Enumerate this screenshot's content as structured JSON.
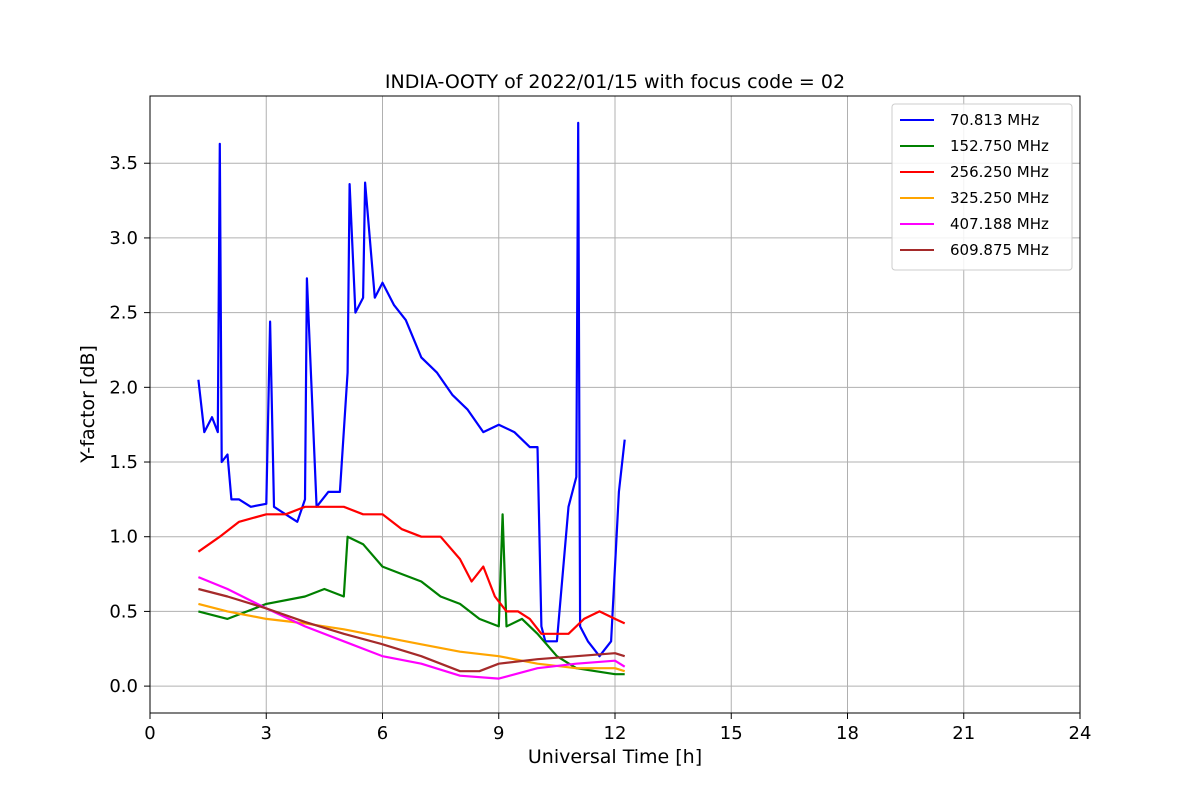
{
  "chart_data": {
    "type": "line",
    "title": "INDIA-OOTY of 2022/01/15 with focus code = 02",
    "xlabel": "Universal Time [h]",
    "ylabel": "Y-factor [dB]",
    "xlim": [
      0,
      24
    ],
    "ylim": [
      -0.18,
      3.95
    ],
    "xticks": [
      0,
      3,
      6,
      9,
      12,
      15,
      18,
      21,
      24
    ],
    "xtick_labels": [
      "0",
      "3",
      "6",
      "9",
      "12",
      "15",
      "18",
      "21",
      "24"
    ],
    "yticks": [
      0.0,
      0.5,
      1.0,
      1.5,
      2.0,
      2.5,
      3.0,
      3.5
    ],
    "ytick_labels": [
      "0.0",
      "0.5",
      "1.0",
      "1.5",
      "2.0",
      "2.5",
      "3.0",
      "3.5"
    ],
    "grid": true,
    "legend_position": "top-right",
    "series": [
      {
        "name": "70.813 MHz",
        "color": "#0000ff",
        "x": [
          1.25,
          1.4,
          1.6,
          1.75,
          1.8,
          1.85,
          2.0,
          2.1,
          2.3,
          2.6,
          3.0,
          3.1,
          3.2,
          3.5,
          3.8,
          4.0,
          4.05,
          4.3,
          4.6,
          4.9,
          5.1,
          5.15,
          5.3,
          5.5,
          5.55,
          5.8,
          6.0,
          6.3,
          6.6,
          7.0,
          7.4,
          7.8,
          8.2,
          8.6,
          9.0,
          9.4,
          9.8,
          10.0,
          10.1,
          10.2,
          10.5,
          10.8,
          11.0,
          11.05,
          11.1,
          11.3,
          11.6,
          11.9,
          12.1,
          12.25
        ],
        "y": [
          2.05,
          1.7,
          1.8,
          1.7,
          3.63,
          1.5,
          1.55,
          1.25,
          1.25,
          1.2,
          1.22,
          2.44,
          1.2,
          1.15,
          1.1,
          1.25,
          2.73,
          1.2,
          1.3,
          1.3,
          2.1,
          3.36,
          2.5,
          2.6,
          3.37,
          2.6,
          2.7,
          2.55,
          2.45,
          2.2,
          2.1,
          1.95,
          1.85,
          1.7,
          1.75,
          1.7,
          1.6,
          1.6,
          0.4,
          0.3,
          0.3,
          1.2,
          1.4,
          3.77,
          0.4,
          0.3,
          0.2,
          0.3,
          1.3,
          1.65
        ]
      },
      {
        "name": "152.750 MHz",
        "color": "#008000",
        "x": [
          1.25,
          2.0,
          3.0,
          4.0,
          4.5,
          5.0,
          5.1,
          5.5,
          6.0,
          6.5,
          7.0,
          7.5,
          8.0,
          8.5,
          9.0,
          9.1,
          9.2,
          9.6,
          10.0,
          10.5,
          11.0,
          11.5,
          12.0,
          12.25
        ],
        "y": [
          0.5,
          0.45,
          0.55,
          0.6,
          0.65,
          0.6,
          1.0,
          0.95,
          0.8,
          0.75,
          0.7,
          0.6,
          0.55,
          0.45,
          0.4,
          1.15,
          0.4,
          0.45,
          0.35,
          0.2,
          0.12,
          0.1,
          0.08,
          0.08
        ]
      },
      {
        "name": "256.250 MHz",
        "color": "#ff0000",
        "x": [
          1.25,
          1.8,
          2.3,
          3.0,
          3.5,
          4.0,
          4.5,
          5.0,
          5.5,
          6.0,
          6.5,
          7.0,
          7.5,
          8.0,
          8.3,
          8.6,
          8.9,
          9.2,
          9.5,
          9.8,
          10.1,
          10.4,
          10.8,
          11.2,
          11.6,
          12.0,
          12.25
        ],
        "y": [
          0.9,
          1.0,
          1.1,
          1.15,
          1.15,
          1.2,
          1.2,
          1.2,
          1.15,
          1.15,
          1.05,
          1.0,
          1.0,
          0.85,
          0.7,
          0.8,
          0.6,
          0.5,
          0.5,
          0.45,
          0.35,
          0.35,
          0.35,
          0.45,
          0.5,
          0.45,
          0.42
        ]
      },
      {
        "name": "325.250 MHz",
        "color": "#ffa500",
        "x": [
          1.25,
          2.0,
          3.0,
          4.0,
          5.0,
          6.0,
          7.0,
          8.0,
          9.0,
          10.0,
          11.0,
          12.0,
          12.25
        ],
        "y": [
          0.55,
          0.5,
          0.45,
          0.42,
          0.38,
          0.33,
          0.28,
          0.23,
          0.2,
          0.15,
          0.12,
          0.12,
          0.1
        ]
      },
      {
        "name": "407.188 MHz",
        "color": "#ff00ff",
        "x": [
          1.25,
          2.0,
          3.0,
          4.0,
          5.0,
          6.0,
          7.0,
          8.0,
          9.0,
          10.0,
          11.0,
          12.0,
          12.25
        ],
        "y": [
          0.73,
          0.65,
          0.52,
          0.4,
          0.3,
          0.2,
          0.15,
          0.07,
          0.05,
          0.12,
          0.15,
          0.17,
          0.13
        ]
      },
      {
        "name": "609.875 MHz",
        "color": "#a52a2a",
        "x": [
          1.25,
          2.0,
          3.0,
          4.0,
          5.0,
          6.0,
          7.0,
          8.0,
          8.5,
          9.0,
          10.0,
          11.0,
          12.0,
          12.25
        ],
        "y": [
          0.65,
          0.6,
          0.52,
          0.43,
          0.35,
          0.28,
          0.2,
          0.1,
          0.1,
          0.15,
          0.18,
          0.2,
          0.22,
          0.2
        ]
      }
    ]
  }
}
